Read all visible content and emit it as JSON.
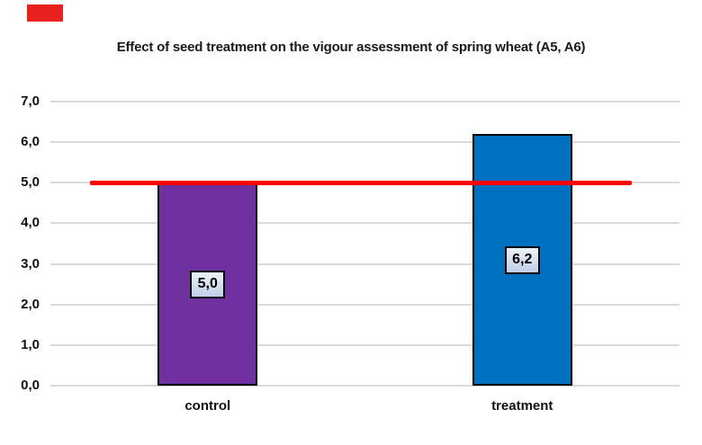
{
  "marker": {
    "color": "#E8201E"
  },
  "chart_data": {
    "type": "bar",
    "title": "Effect of seed treatment on the vigour assessment of spring wheat (A5, A6)",
    "categories": [
      "control",
      "treatment"
    ],
    "values": [
      5.0,
      6.2
    ],
    "value_labels": [
      "5,0",
      "6,2"
    ],
    "bar_colors": [
      "#7030A0",
      "#0070C0"
    ],
    "bar_border_color": "#000000",
    "ylim": [
      0,
      7
    ],
    "yticks": [
      0,
      1,
      2,
      3,
      4,
      5,
      6,
      7
    ],
    "ytick_labels": [
      "0,0",
      "1,0",
      "2,0",
      "3,0",
      "4,0",
      "5,0",
      "6,0",
      "7,0"
    ],
    "grid": true,
    "gridline_color": "#D9D9D9",
    "legend": "none",
    "reference_line": {
      "value": 5.0,
      "color": "#FF0000"
    },
    "data_label_box": {
      "border_color": "#000000",
      "fill_top": "#EDF2F9",
      "fill_bottom": "#BFCFE7"
    }
  }
}
